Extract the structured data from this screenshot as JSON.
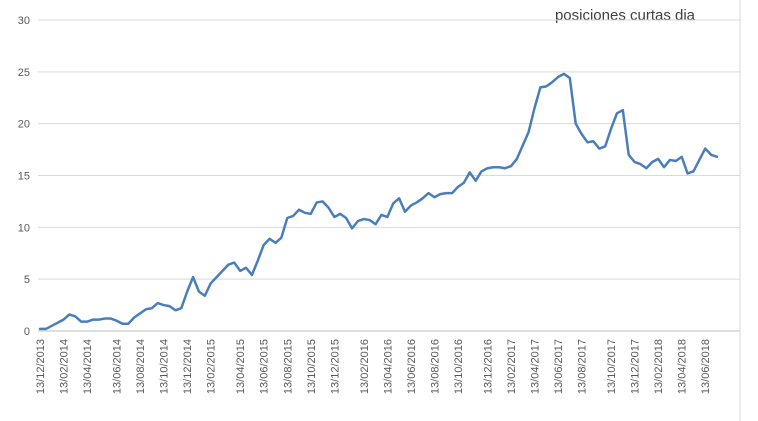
{
  "chart_data": {
    "type": "line",
    "title": "posiciones curtas dia",
    "categories": [
      "13/12/2013",
      null,
      null,
      null,
      "13/02/2014",
      null,
      null,
      null,
      "13/04/2014",
      null,
      null,
      null,
      null,
      "13/06/2014",
      null,
      null,
      null,
      "13/08/2014",
      null,
      null,
      null,
      "13/10/2014",
      null,
      null,
      null,
      "13/12/2014",
      null,
      null,
      null,
      "13/02/2015",
      null,
      null,
      null,
      null,
      "13/04/2015",
      null,
      null,
      null,
      "13/06/2015",
      null,
      null,
      null,
      "13/08/2015",
      null,
      null,
      null,
      "13/10/2015",
      null,
      null,
      null,
      "13/12/2015",
      null,
      null,
      null,
      null,
      "13/02/2016",
      null,
      null,
      null,
      "13/04/2016",
      null,
      null,
      null,
      "13/06/2016",
      null,
      null,
      null,
      "13/08/2016",
      null,
      null,
      null,
      "13/10/2016",
      null,
      null,
      null,
      null,
      "13/12/2016",
      null,
      null,
      null,
      "13/02/2017",
      null,
      null,
      null,
      "13/04/2017",
      null,
      null,
      null,
      "13/06/2017",
      null,
      null,
      null,
      "13/08/2017",
      null,
      null,
      null,
      null,
      "13/10/2017",
      null,
      null,
      null,
      "13/12/2017",
      null,
      null,
      null,
      "13/02/2018",
      null,
      null,
      null,
      "13/04/2018",
      null,
      null,
      null,
      "13/06/2018",
      null,
      null
    ],
    "values": [
      0.2,
      0.2,
      0.5,
      0.8,
      1.1,
      1.6,
      1.4,
      0.9,
      0.9,
      1.1,
      1.1,
      1.2,
      1.2,
      1.0,
      0.7,
      0.7,
      1.3,
      1.7,
      2.1,
      2.2,
      2.7,
      2.5,
      2.4,
      2.0,
      2.2,
      3.8,
      5.2,
      3.8,
      3.4,
      4.6,
      5.2,
      5.8,
      6.4,
      6.6,
      5.8,
      6.1,
      5.4,
      6.8,
      8.3,
      8.9,
      8.5,
      9.0,
      10.9,
      11.1,
      11.7,
      11.4,
      11.3,
      12.4,
      12.5,
      11.9,
      11.0,
      11.3,
      10.9,
      9.9,
      10.6,
      10.8,
      10.7,
      10.3,
      11.2,
      11.0,
      12.3,
      12.8,
      11.5,
      12.1,
      12.4,
      12.8,
      13.3,
      12.9,
      13.2,
      13.3,
      13.3,
      13.9,
      14.3,
      15.3,
      14.5,
      15.4,
      15.7,
      15.8,
      15.8,
      15.7,
      15.9,
      16.6,
      17.9,
      19.2,
      21.5,
      23.5,
      23.6,
      24.0,
      24.5,
      24.8,
      24.4,
      20.0,
      19.0,
      18.2,
      18.3,
      17.6,
      17.8,
      19.5,
      21.0,
      21.3,
      17.0,
      16.3,
      16.1,
      15.7,
      16.3,
      16.6,
      15.8,
      16.5,
      16.4,
      16.8,
      15.2,
      15.4,
      16.5,
      17.6,
      17.0,
      16.8
    ],
    "color": "#4a7ebb",
    "ylim": [
      0,
      30
    ],
    "yticks": [
      0,
      5,
      10,
      15,
      20,
      25,
      30
    ],
    "grid": true
  }
}
